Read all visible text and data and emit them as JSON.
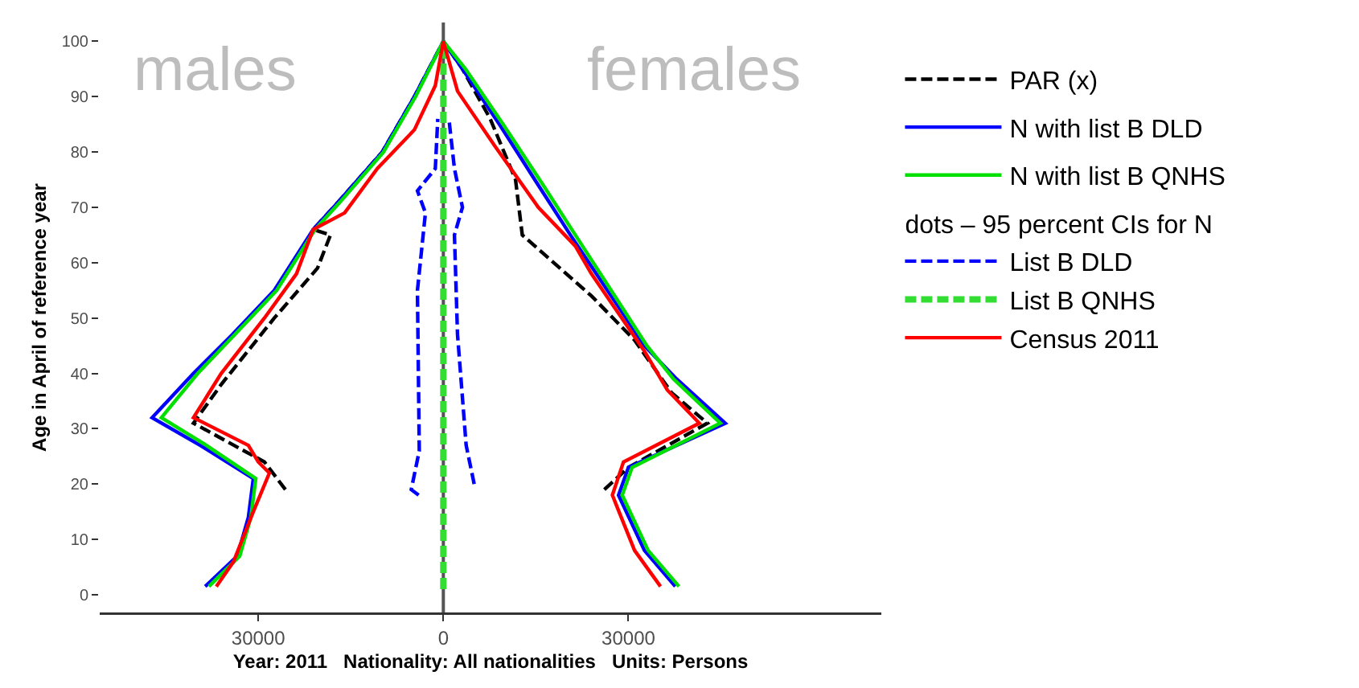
{
  "chart_data": {
    "type": "line",
    "xlabel": "Year: 2011   Nationality: All nationalities   Units: Persons",
    "ylabel": "Age in April of reference year",
    "legend_title": "dots – 95 percent CIs for N",
    "annotations": [
      "males",
      "females"
    ],
    "legend": "right",
    "grid": false,
    "marker": "none",
    "xlim": [
      -55700,
      71000
    ],
    "xticks": [
      {
        "value": -30000,
        "label": "30000"
      },
      0,
      30000
    ],
    "ylim": [
      -3.2,
      103.4
    ],
    "yticks": [
      0,
      10,
      20,
      30,
      40,
      50,
      60,
      70,
      80,
      90,
      100
    ],
    "ref_lines": [
      {
        "axis": "x",
        "value": 0,
        "color": "#555555"
      }
    ],
    "series": [
      {
        "name": "PAR (x)",
        "color": "#000000",
        "line_style": "dashed",
        "x": [
          -25600,
          -29000,
          -40500,
          -36000,
          -27400,
          -20400,
          -18300,
          -21100,
          -17000,
          -9900,
          -4700,
          0,
          null,
          26100,
          30000,
          42800,
          37000,
          31000,
          24000,
          12800,
          11700,
          7600,
          3100,
          0
        ],
        "values": [
          19,
          24,
          31,
          38,
          50,
          59,
          65,
          66,
          71,
          80,
          90,
          100,
          null,
          19,
          23,
          31,
          36.5,
          46,
          54,
          65,
          75,
          86,
          95,
          100
        ]
      },
      {
        "name": "N with list B DLD",
        "color": "#0000ff",
        "line_style": "solid",
        "x": [
          -38600,
          -33400,
          -31600,
          -30800,
          -39400,
          -47200,
          -40500,
          -34200,
          -27400,
          -21100,
          -17000,
          -9900,
          -4700,
          0,
          null,
          37600,
          32600,
          28400,
          30000,
          45700,
          37800,
          32600,
          26600,
          20600,
          15400,
          9100,
          3100,
          0
        ],
        "values": [
          1.5,
          7,
          14,
          21,
          27,
          32,
          40,
          47,
          55,
          66,
          71,
          80,
          90,
          100,
          null,
          1.5,
          8,
          18,
          23,
          31,
          39,
          45,
          55,
          65,
          74,
          85,
          95,
          100
        ]
      },
      {
        "name": "N with list B QNHS",
        "color": "#00e000",
        "line_style": "solid",
        "x": [
          -38000,
          -33000,
          -31200,
          -30400,
          -38400,
          -45700,
          -39800,
          -33800,
          -27000,
          -20800,
          -16700,
          -9700,
          -4500,
          0,
          null,
          38200,
          33200,
          29000,
          30600,
          44900,
          37300,
          33000,
          27200,
          21400,
          16200,
          9700,
          3600,
          0
        ],
        "values": [
          1.5,
          7,
          14,
          21,
          27,
          32,
          40,
          47,
          55,
          66,
          71,
          80,
          90,
          100,
          null,
          1.5,
          8,
          18,
          23,
          31,
          39,
          45,
          55,
          65,
          74,
          85,
          95,
          100
        ]
      },
      {
        "name": "List B DLD",
        "color": "#0000ff",
        "line_style": "dashed",
        "x": [
          -4000,
          -5200,
          -3900,
          -4200,
          -2900,
          -4200,
          -1300,
          -900,
          null,
          5000,
          3700,
          2300,
          1800,
          3100,
          1800,
          900
        ],
        "values": [
          18,
          19,
          26,
          55,
          69,
          73,
          77,
          86,
          null,
          20,
          27,
          47,
          65,
          70,
          77,
          86
        ]
      },
      {
        "name": "List B QNHS",
        "color": "#33dd33",
        "line_style": "dashed",
        "x": [
          0,
          0
        ],
        "values": [
          1,
          99
        ]
      },
      {
        "name": "Census 2011",
        "color": "#ff0000",
        "line_style": "solid",
        "x": [
          -36800,
          -34000,
          -30800,
          -28200,
          -30000,
          -31600,
          -40500,
          -36000,
          -29000,
          -23800,
          -21100,
          -16000,
          -10700,
          -4700,
          -1300,
          0,
          null,
          35200,
          31000,
          27400,
          29200,
          41500,
          36300,
          32600,
          24000,
          21400,
          15400,
          8400,
          2300,
          0
        ],
        "values": [
          1.5,
          6,
          15,
          22,
          24,
          27,
          32,
          40,
          50,
          58,
          66,
          69,
          77,
          84,
          92,
          100,
          null,
          1.5,
          8,
          18,
          24,
          31,
          37,
          44,
          58,
          63,
          70,
          81,
          91,
          100
        ]
      }
    ]
  }
}
